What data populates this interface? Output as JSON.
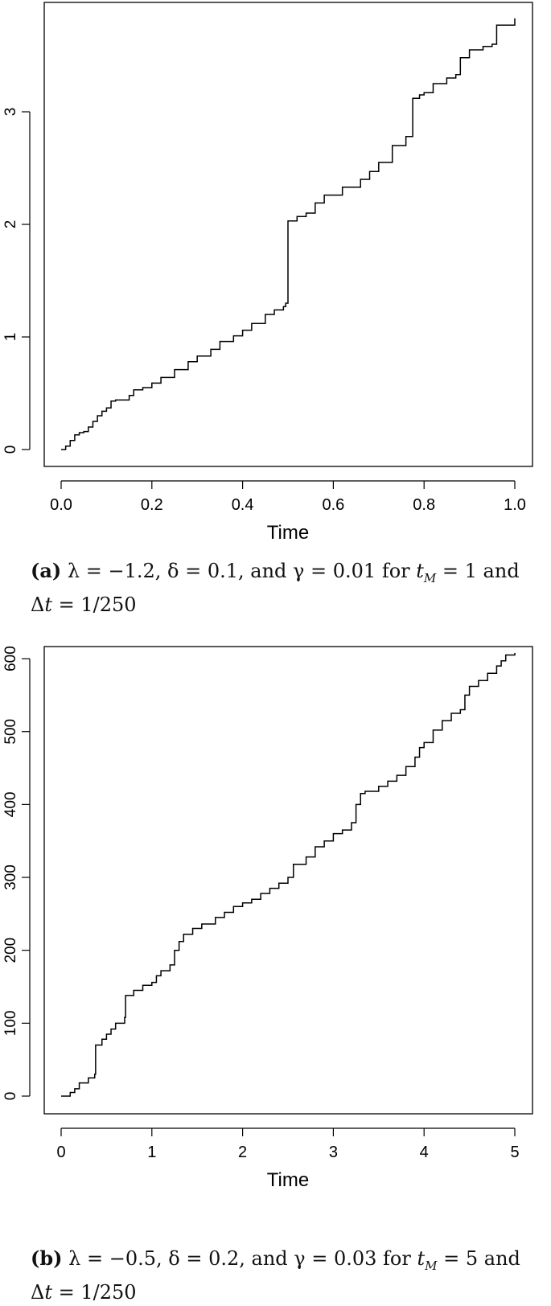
{
  "chart_data": [
    {
      "type": "line",
      "xlabel": "Time",
      "ylabel": "",
      "xlim": [
        0,
        1
      ],
      "ylim": [
        0,
        3.85
      ],
      "x_ticks": [
        0,
        0.2,
        0.4,
        0.6,
        0.8,
        1.0
      ],
      "x_tick_labels": [
        "0.0",
        "0.2",
        "0.4",
        "0.6",
        "0.8",
        "1.0"
      ],
      "y_ticks": [
        0,
        1,
        2,
        3
      ],
      "y_tick_labels": [
        "0",
        "1",
        "2",
        "3"
      ],
      "grid": false,
      "series": [
        {
          "x": [
            0,
            0.01,
            0.02,
            0.03,
            0.04,
            0.05,
            0.06,
            0.07,
            0.08,
            0.09,
            0.1,
            0.11,
            0.12,
            0.15,
            0.16,
            0.18,
            0.2,
            0.22,
            0.25,
            0.28,
            0.3,
            0.33,
            0.35,
            0.38,
            0.4,
            0.42,
            0.45,
            0.47,
            0.49,
            0.495,
            0.5,
            0.52,
            0.54,
            0.56,
            0.58,
            0.62,
            0.66,
            0.68,
            0.7,
            0.73,
            0.76,
            0.77,
            0.775,
            0.79,
            0.8,
            0.82,
            0.85,
            0.87,
            0.88,
            0.9,
            0.93,
            0.95,
            0.96,
            1.0
          ],
          "y": [
            0,
            0.03,
            0.08,
            0.13,
            0.15,
            0.16,
            0.2,
            0.25,
            0.3,
            0.34,
            0.37,
            0.43,
            0.44,
            0.48,
            0.53,
            0.55,
            0.59,
            0.64,
            0.71,
            0.78,
            0.83,
            0.89,
            0.96,
            1.01,
            1.06,
            1.12,
            1.2,
            1.24,
            1.27,
            1.3,
            2.03,
            2.07,
            2.1,
            2.19,
            2.26,
            2.33,
            2.4,
            2.47,
            2.55,
            2.7,
            2.78,
            2.78,
            3.12,
            3.15,
            3.17,
            3.25,
            3.3,
            3.33,
            3.48,
            3.55,
            3.58,
            3.6,
            3.77,
            3.83
          ]
        }
      ]
    },
    {
      "type": "line",
      "xlabel": "Time",
      "ylabel": "",
      "xlim": [
        0,
        5
      ],
      "ylim": [
        0,
        610
      ],
      "x_ticks": [
        0,
        1,
        2,
        3,
        4,
        5
      ],
      "x_tick_labels": [
        "0",
        "1",
        "2",
        "3",
        "4",
        "5"
      ],
      "y_ticks": [
        0,
        100,
        200,
        300,
        400,
        500,
        600
      ],
      "y_tick_labels": [
        "0",
        "100",
        "200",
        "300",
        "400",
        "500",
        "600"
      ],
      "grid": false,
      "series": [
        {
          "x": [
            0,
            0.1,
            0.15,
            0.2,
            0.3,
            0.37,
            0.38,
            0.45,
            0.5,
            0.55,
            0.6,
            0.7,
            0.71,
            0.8,
            0.9,
            1.0,
            1.05,
            1.1,
            1.2,
            1.25,
            1.3,
            1.35,
            1.45,
            1.55,
            1.7,
            1.8,
            1.9,
            2.0,
            2.1,
            2.2,
            2.3,
            2.4,
            2.5,
            2.55,
            2.56,
            2.7,
            2.8,
            2.9,
            3.0,
            3.1,
            3.2,
            3.25,
            3.3,
            3.35,
            3.5,
            3.6,
            3.7,
            3.8,
            3.9,
            3.95,
            4.0,
            4.1,
            4.2,
            4.3,
            4.4,
            4.45,
            4.5,
            4.6,
            4.7,
            4.8,
            4.85,
            4.9,
            5.0
          ],
          "y": [
            0,
            5,
            10,
            18,
            25,
            30,
            70,
            78,
            85,
            92,
            100,
            108,
            138,
            145,
            152,
            156,
            165,
            172,
            180,
            200,
            212,
            222,
            230,
            236,
            245,
            252,
            260,
            265,
            270,
            278,
            285,
            292,
            300,
            300,
            318,
            328,
            342,
            350,
            360,
            365,
            375,
            400,
            415,
            418,
            425,
            432,
            440,
            452,
            465,
            478,
            485,
            502,
            515,
            525,
            530,
            550,
            562,
            570,
            580,
            590,
            597,
            605,
            608
          ]
        }
      ]
    }
  ],
  "captions": [
    {
      "label": "(a)",
      "lambda": "−1.2",
      "delta": "0.1",
      "gamma": "0.01",
      "tM": "1",
      "dt": "1/250"
    },
    {
      "label": "(b)",
      "lambda": "−0.5",
      "delta": "0.2",
      "gamma": "0.03",
      "tM": "5",
      "dt": "1/250"
    }
  ]
}
